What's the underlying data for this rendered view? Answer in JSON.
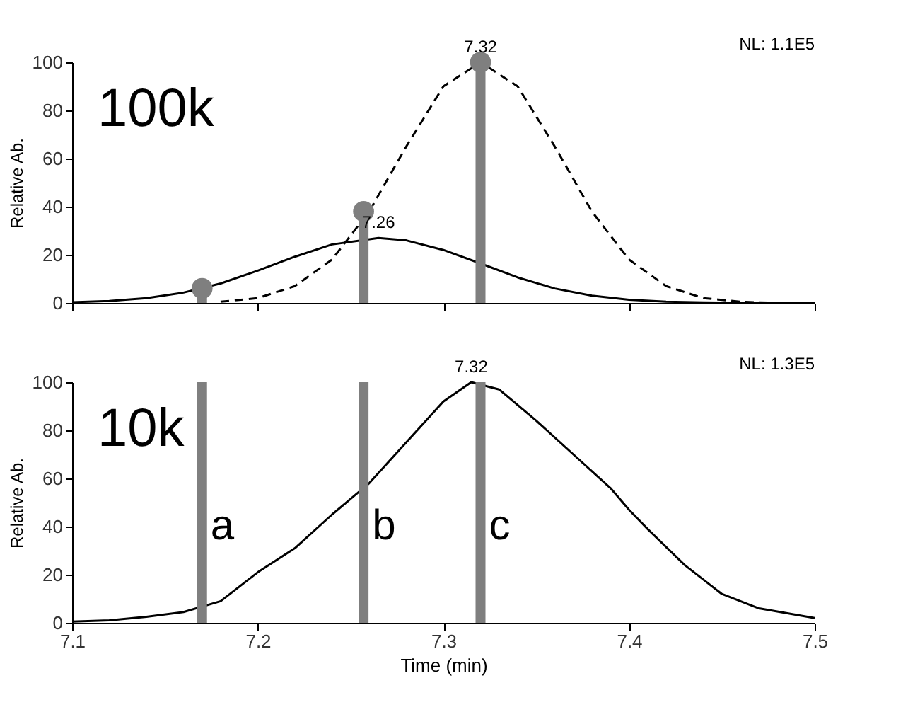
{
  "chart_data": [
    {
      "type": "line",
      "title": "100k",
      "ylabel": "Relative Ab.",
      "xlim": [
        7.1,
        7.5
      ],
      "xticks": [
        7.1,
        7.2,
        7.3,
        7.4,
        7.5
      ],
      "ylim": [
        0,
        100
      ],
      "yticks": [
        0,
        20,
        40,
        60,
        80,
        100
      ],
      "tick_labels": "y",
      "grid": false,
      "series": [
        {
          "type": "line",
          "color": "#000000",
          "line_style": "solid",
          "x": [
            7.1,
            7.12,
            7.14,
            7.16,
            7.18,
            7.2,
            7.22,
            7.24,
            7.265,
            7.28,
            7.3,
            7.32,
            7.34,
            7.36,
            7.38,
            7.4,
            7.42,
            7.44,
            7.5
          ],
          "values": [
            0.3,
            0.8,
            2,
            4.3,
            8.1,
            13.4,
            19.2,
            24.3,
            27,
            26,
            22,
            16.4,
            10.6,
            6,
            3,
            1.3,
            0.5,
            0.2,
            0
          ]
        },
        {
          "type": "line",
          "color": "#000000",
          "line_style": "dashed",
          "x": [
            7.18,
            7.2,
            7.22,
            7.24,
            7.26,
            7.28,
            7.3,
            7.32,
            7.34,
            7.36,
            7.38,
            7.4,
            7.42,
            7.44,
            7.46,
            7.48
          ],
          "values": [
            0.5,
            2,
            7,
            18,
            38,
            65,
            90,
            100,
            90,
            65,
            38,
            18,
            7,
            2,
            0.5,
            0
          ]
        },
        {
          "type": "lollipop",
          "color": "#7f7f7f",
          "marker": "circle",
          "x": [
            7.17,
            7.257,
            7.32
          ],
          "values": [
            6,
            38,
            100
          ]
        }
      ],
      "annotations": [
        {
          "text": "7.32",
          "x": 7.32,
          "y": 100
        },
        {
          "text": "7.26",
          "x": 7.265,
          "y": 27
        },
        "NL: 1.1E5"
      ]
    },
    {
      "type": "line",
      "title": "10k",
      "xlabel": "Time (min)",
      "ylabel": "Relative Ab.",
      "xlim": [
        7.1,
        7.5
      ],
      "xticks": [
        7.1,
        7.2,
        7.3,
        7.4,
        7.5
      ],
      "ylim": [
        0,
        100
      ],
      "yticks": [
        0,
        20,
        40,
        60,
        80,
        100
      ],
      "grid": false,
      "series": [
        {
          "type": "line",
          "color": "#000000",
          "line_style": "solid",
          "x": [
            7.1,
            7.12,
            7.14,
            7.16,
            7.18,
            7.2,
            7.22,
            7.24,
            7.26,
            7.28,
            7.3,
            7.315,
            7.33,
            7.35,
            7.37,
            7.39,
            7.4,
            7.41,
            7.43,
            7.45,
            7.47,
            7.5
          ],
          "values": [
            0.5,
            1,
            2.5,
            4.5,
            9,
            21,
            31,
            45,
            58,
            75,
            92,
            100,
            97,
            84,
            70,
            56,
            47,
            39,
            24,
            12,
            6,
            2
          ]
        }
      ],
      "ref_lines": [
        {
          "axis": "x",
          "value": 7.17,
          "label": "a",
          "color": "#7f7f7f"
        },
        {
          "axis": "x",
          "value": 7.257,
          "label": "b",
          "color": "#7f7f7f"
        },
        {
          "axis": "x",
          "value": 7.32,
          "label": "c",
          "color": "#7f7f7f"
        }
      ],
      "annotations": [
        {
          "text": "7.32",
          "x": 7.315,
          "y": 100
        },
        "NL: 1.3E5"
      ]
    }
  ]
}
